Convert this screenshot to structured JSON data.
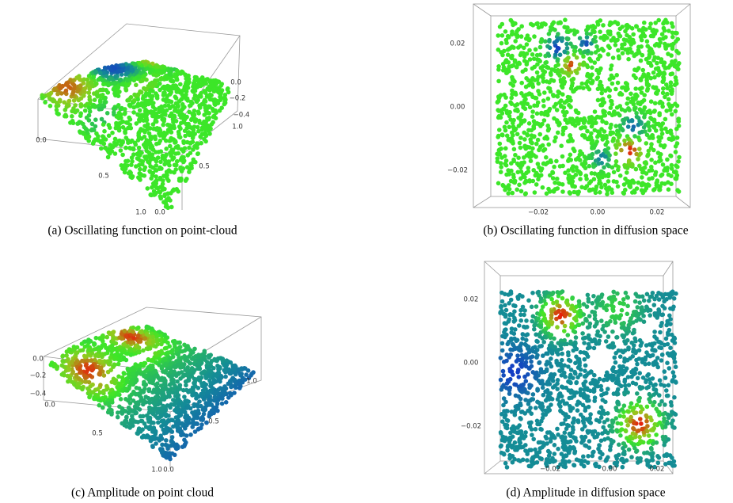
{
  "panels": [
    {
      "caption": "(a) Oscillating function on point-cloud",
      "tick_labels": [
        "0.0",
        "−0.2",
        "−0.4",
        "0.0",
        "0.5",
        "1.0",
        "0.0",
        "0.5",
        "1.0"
      ]
    },
    {
      "caption": "(b) Oscillating function in diffusion space",
      "tick_labels": [
        "0.02",
        "0.00",
        "−0.02",
        "−0.02",
        "0.00",
        "0.02"
      ]
    },
    {
      "caption": "(c) Amplitude on point cloud",
      "tick_labels": [
        "0.0",
        "−0.2",
        "−0.4",
        "0.0",
        "0.5",
        "1.0",
        "0.0",
        "0.5",
        "1.0"
      ]
    },
    {
      "caption": "(d) Amplitude in diffusion space",
      "tick_labels": [
        "0.02",
        "0.00",
        "−0.02",
        "−0.02",
        "0.00",
        "0.02"
      ]
    }
  ]
}
